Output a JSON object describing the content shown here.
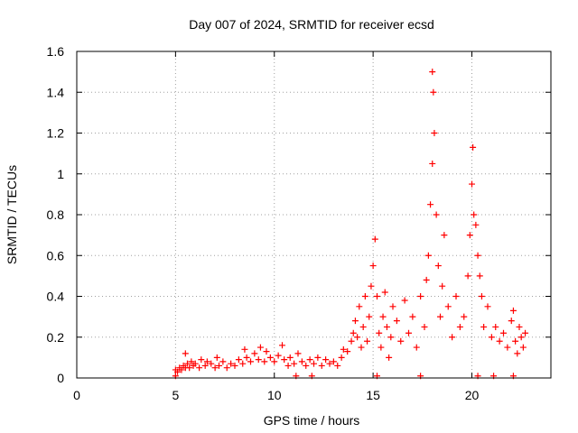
{
  "chart_data": {
    "type": "scatter",
    "title": "Day 007 of 2024, SRMTID for receiver ecsd",
    "xlabel": "GPS time / hours",
    "ylabel": "SRMTID / TECUs",
    "xlim": [
      0,
      24
    ],
    "ylim": [
      0,
      1.6
    ],
    "xticks": [
      0,
      5,
      10,
      15,
      20
    ],
    "yticks": [
      0,
      0.2,
      0.4,
      0.6,
      0.8,
      1,
      1.2,
      1.4,
      1.6
    ],
    "xtick_labels": [
      "0",
      "5",
      "10",
      "15",
      "20"
    ],
    "ytick_labels": [
      "0",
      "0.2",
      "0.4",
      "0.6",
      "0.8",
      "1",
      "1.2",
      "1.4",
      "1.6"
    ],
    "grid": true,
    "marker": "+",
    "color": "#ff0000",
    "series": [
      {
        "name": "SRMTID",
        "points": [
          [
            5.0,
            0.01
          ],
          [
            5.0,
            0.04
          ],
          [
            5.1,
            0.03
          ],
          [
            5.2,
            0.05
          ],
          [
            5.3,
            0.04
          ],
          [
            5.4,
            0.06
          ],
          [
            5.5,
            0.05
          ],
          [
            5.5,
            0.12
          ],
          [
            5.6,
            0.07
          ],
          [
            5.7,
            0.05
          ],
          [
            5.8,
            0.08
          ],
          [
            5.9,
            0.06
          ],
          [
            6.0,
            0.07
          ],
          [
            6.2,
            0.05
          ],
          [
            6.3,
            0.09
          ],
          [
            6.5,
            0.06
          ],
          [
            6.6,
            0.08
          ],
          [
            6.8,
            0.07
          ],
          [
            7.0,
            0.05
          ],
          [
            7.1,
            0.1
          ],
          [
            7.2,
            0.06
          ],
          [
            7.4,
            0.08
          ],
          [
            7.6,
            0.05
          ],
          [
            7.8,
            0.07
          ],
          [
            8.0,
            0.06
          ],
          [
            8.2,
            0.09
          ],
          [
            8.4,
            0.07
          ],
          [
            8.5,
            0.14
          ],
          [
            8.6,
            0.1
          ],
          [
            8.8,
            0.08
          ],
          [
            9.0,
            0.12
          ],
          [
            9.2,
            0.09
          ],
          [
            9.3,
            0.15
          ],
          [
            9.5,
            0.08
          ],
          [
            9.6,
            0.13
          ],
          [
            9.8,
            0.1
          ],
          [
            10.0,
            0.08
          ],
          [
            10.2,
            0.11
          ],
          [
            10.4,
            0.16
          ],
          [
            10.5,
            0.09
          ],
          [
            10.7,
            0.06
          ],
          [
            10.8,
            0.1
          ],
          [
            11.0,
            0.07
          ],
          [
            11.2,
            0.12
          ],
          [
            11.4,
            0.08
          ],
          [
            11.6,
            0.06
          ],
          [
            11.8,
            0.09
          ],
          [
            12.0,
            0.07
          ],
          [
            12.2,
            0.1
          ],
          [
            12.4,
            0.06
          ],
          [
            12.6,
            0.09
          ],
          [
            12.8,
            0.07
          ],
          [
            13.0,
            0.08
          ],
          [
            13.2,
            0.06
          ],
          [
            13.4,
            0.1
          ],
          [
            13.5,
            0.14
          ],
          [
            13.7,
            0.13
          ],
          [
            13.9,
            0.18
          ],
          [
            14.0,
            0.22
          ],
          [
            14.1,
            0.28
          ],
          [
            14.2,
            0.2
          ],
          [
            14.3,
            0.35
          ],
          [
            14.4,
            0.15
          ],
          [
            14.5,
            0.25
          ],
          [
            14.6,
            0.4
          ],
          [
            14.7,
            0.18
          ],
          [
            14.8,
            0.3
          ],
          [
            14.9,
            0.45
          ],
          [
            15.0,
            0.55
          ],
          [
            15.1,
            0.68
          ],
          [
            15.2,
            0.4
          ],
          [
            15.3,
            0.22
          ],
          [
            15.4,
            0.15
          ],
          [
            15.5,
            0.3
          ],
          [
            15.6,
            0.42
          ],
          [
            15.7,
            0.25
          ],
          [
            15.8,
            0.1
          ],
          [
            15.9,
            0.2
          ],
          [
            16.0,
            0.35
          ],
          [
            16.2,
            0.28
          ],
          [
            16.4,
            0.18
          ],
          [
            16.6,
            0.38
          ],
          [
            16.8,
            0.22
          ],
          [
            17.0,
            0.3
          ],
          [
            17.2,
            0.15
          ],
          [
            17.4,
            0.4
          ],
          [
            17.6,
            0.25
          ],
          [
            17.7,
            0.48
          ],
          [
            17.8,
            0.6
          ],
          [
            17.9,
            0.85
          ],
          [
            18.0,
            1.05
          ],
          [
            18.0,
            1.5
          ],
          [
            18.05,
            1.4
          ],
          [
            18.1,
            1.2
          ],
          [
            18.2,
            0.8
          ],
          [
            18.3,
            0.55
          ],
          [
            18.4,
            0.3
          ],
          [
            18.5,
            0.45
          ],
          [
            18.6,
            0.7
          ],
          [
            18.8,
            0.35
          ],
          [
            19.0,
            0.2
          ],
          [
            19.2,
            0.4
          ],
          [
            19.4,
            0.25
          ],
          [
            19.6,
            0.3
          ],
          [
            19.8,
            0.5
          ],
          [
            19.9,
            0.7
          ],
          [
            20.0,
            0.95
          ],
          [
            20.05,
            1.13
          ],
          [
            20.1,
            0.8
          ],
          [
            20.2,
            0.75
          ],
          [
            20.3,
            0.6
          ],
          [
            20.4,
            0.5
          ],
          [
            20.5,
            0.4
          ],
          [
            20.6,
            0.25
          ],
          [
            20.8,
            0.35
          ],
          [
            21.0,
            0.2
          ],
          [
            21.2,
            0.25
          ],
          [
            21.4,
            0.18
          ],
          [
            21.6,
            0.22
          ],
          [
            21.8,
            0.15
          ],
          [
            22.0,
            0.28
          ],
          [
            22.1,
            0.33
          ],
          [
            22.2,
            0.18
          ],
          [
            22.3,
            0.12
          ],
          [
            22.4,
            0.25
          ],
          [
            22.5,
            0.2
          ],
          [
            22.6,
            0.15
          ],
          [
            22.7,
            0.22
          ],
          [
            15.2,
            0.01
          ],
          [
            17.4,
            0.01
          ],
          [
            20.3,
            0.01
          ],
          [
            21.1,
            0.01
          ],
          [
            22.1,
            0.01
          ],
          [
            11.1,
            0.01
          ],
          [
            11.9,
            0.01
          ]
        ]
      }
    ]
  }
}
